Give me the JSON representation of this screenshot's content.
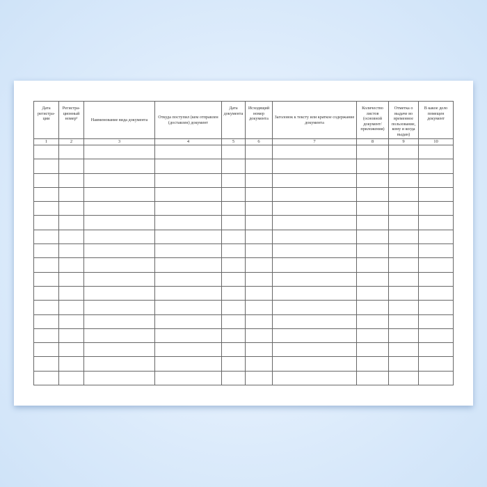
{
  "columns": [
    {
      "header": "Дата регистра-ции",
      "number": "1"
    },
    {
      "header": "Регистра-ционный номер¹",
      "number": "2"
    },
    {
      "header": "Наименование вида документа",
      "number": "3"
    },
    {
      "header": "Откуда поступил (кем отправлен (доставлен) документ",
      "number": "4"
    },
    {
      "header": "Дата документа",
      "number": "5"
    },
    {
      "header": "Исходящий номер документа",
      "number": "6"
    },
    {
      "header": "Заголовок к тексту или краткое содержание документа",
      "number": "7"
    },
    {
      "header": "Количество листов (основной документ/ приложения)",
      "number": "8"
    },
    {
      "header": "Отметка о выдаче во временное пользование, кому и когда выдан)",
      "number": "9"
    },
    {
      "header": "В какое дело помещен документ",
      "number": "10"
    }
  ],
  "empty_rows": 17
}
